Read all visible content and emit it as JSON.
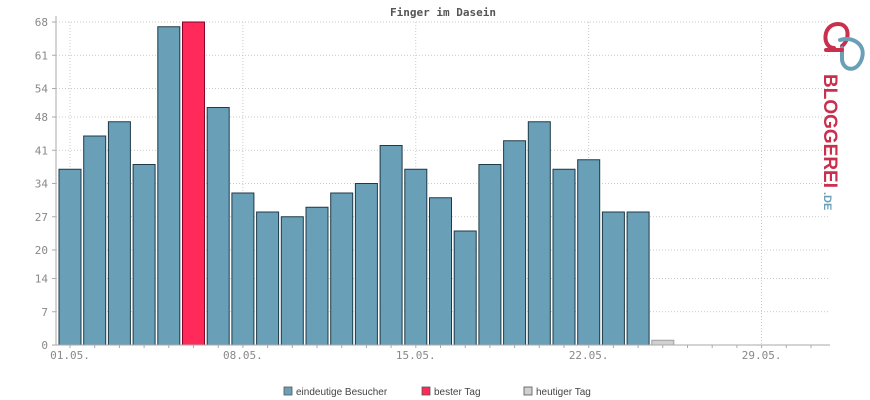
{
  "chart_data": {
    "type": "bar",
    "title": "Finger im Dasein",
    "xlabel": "",
    "ylabel": "",
    "y_ticks": [
      "0",
      "7",
      "14",
      "20",
      "27",
      "34",
      "41",
      "48",
      "54",
      "61",
      "68"
    ],
    "ylim": [
      0,
      68
    ],
    "x_ticks": [
      "01.05.",
      "08.05.",
      "15.05.",
      "22.05.",
      "29.05."
    ],
    "x_tick_days": [
      1,
      8,
      15,
      22,
      29
    ],
    "days": [
      1,
      2,
      3,
      4,
      5,
      6,
      7,
      8,
      9,
      10,
      11,
      12,
      13,
      14,
      15,
      16,
      17,
      18,
      19,
      20,
      21,
      22,
      23,
      24,
      25,
      26,
      27,
      28,
      29,
      30,
      31
    ],
    "values": [
      37,
      44,
      47,
      38,
      67,
      68,
      50,
      32,
      28,
      27,
      29,
      32,
      34,
      42,
      37,
      31,
      24,
      38,
      43,
      47,
      37,
      39,
      28,
      28,
      1,
      0,
      0,
      0,
      0,
      0,
      0
    ],
    "highlight": {
      "best_day_index": 5,
      "today_index": 24
    },
    "grid": true,
    "legend_position": "bottom-center",
    "colors": {
      "bar": "#6a9fb8",
      "bar_border": "#1d3a48",
      "best": "#ff2a5a",
      "best_border": "#8a0025",
      "today": "#d0d0d0",
      "today_border": "#a0a0a0",
      "grid": "#bbbbbb",
      "axis": "#aaaaaa"
    },
    "legend": [
      {
        "label": "eindeutige Besucher",
        "color": "#6a9fb8"
      },
      {
        "label": "bester Tag",
        "color": "#ff2a5a"
      },
      {
        "label": "heutiger Tag",
        "color": "#d0d0d0"
      }
    ]
  },
  "logo": {
    "text_main": "BLOGGEREI",
    "text_suffix": ".DE",
    "color_main": "#c9304e",
    "color_accent": "#6a9fb8"
  }
}
